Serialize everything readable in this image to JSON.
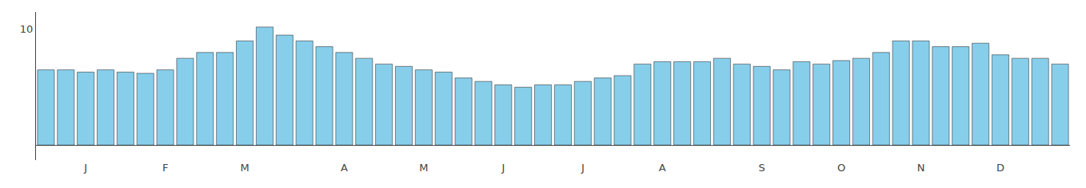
{
  "chart_data": {
    "type": "bar",
    "categories": [
      null,
      null,
      "J",
      null,
      null,
      null,
      "F",
      null,
      null,
      null,
      "M",
      null,
      null,
      null,
      null,
      "A",
      null,
      null,
      null,
      "M",
      null,
      null,
      null,
      "J",
      null,
      null,
      null,
      "J",
      null,
      null,
      null,
      "A",
      null,
      null,
      null,
      null,
      "S",
      null,
      null,
      null,
      "O",
      null,
      null,
      null,
      "N",
      null,
      null,
      null,
      "D",
      null,
      null,
      null
    ],
    "values": [
      6.5,
      6.5,
      6.3,
      6.5,
      6.3,
      6.2,
      6.5,
      7.5,
      8.0,
      8.0,
      9.0,
      10.2,
      9.5,
      9.0,
      8.5,
      8.0,
      7.5,
      7.0,
      6.8,
      6.5,
      6.3,
      5.8,
      5.5,
      5.2,
      5.0,
      5.2,
      5.2,
      5.5,
      5.8,
      6.0,
      7.0,
      7.2,
      7.2,
      7.2,
      7.5,
      7.0,
      6.8,
      6.5,
      7.2,
      7.0,
      7.3,
      7.5,
      8.0,
      9.0,
      9.0,
      8.5,
      8.5,
      8.8,
      7.8,
      7.5,
      7.5,
      7.0
    ],
    "color": "#87CEEB",
    "ylim": [
      -1.3,
      11.5
    ],
    "yticks": [
      10
    ],
    "grid": false
  }
}
